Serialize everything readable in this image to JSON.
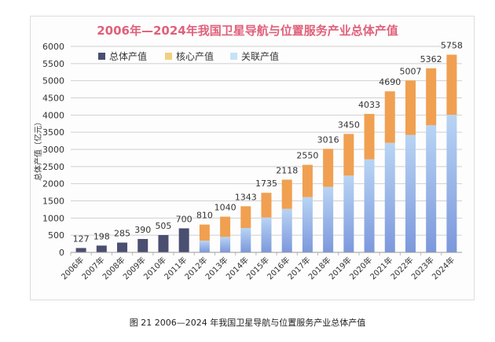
{
  "chart_data": {
    "type": "bar",
    "stacked": true,
    "title": "2006年—2024年我国卫星导航与位置服务产业总体产值",
    "ylabel": "总体产值（亿元）",
    "xlabel": "",
    "ylim": [
      0,
      6000
    ],
    "yticks": [
      0,
      500,
      1000,
      1500,
      2000,
      2500,
      3000,
      3500,
      4000,
      4500,
      5000,
      5500,
      6000
    ],
    "grid": true,
    "legend_position": "top-left",
    "categories": [
      "2006年",
      "2007年",
      "2008年",
      "2009年",
      "2010年",
      "2011年",
      "2012年",
      "2013年",
      "2014年",
      "2015年",
      "2016年",
      "2017年",
      "2018年",
      "2019年",
      "2020年",
      "2021年",
      "2022年",
      "2023年",
      "2024年"
    ],
    "series": [
      {
        "name": "总体产值",
        "color": "#4a4e70",
        "values": [
          127,
          198,
          285,
          390,
          505,
          700,
          null,
          null,
          null,
          null,
          null,
          null,
          null,
          null,
          null,
          null,
          null,
          null,
          null
        ]
      },
      {
        "name": "核心产值",
        "color": "#f0a050",
        "values": [
          null,
          null,
          null,
          null,
          null,
          null,
          470,
          590,
          633,
          720,
          851,
          940,
          1108,
          1213,
          1323,
          1500,
          1587,
          1660,
          1750
        ]
      },
      {
        "name": "关联产值",
        "color": "#9ab8ec",
        "values": [
          null,
          null,
          null,
          null,
          null,
          null,
          340,
          450,
          710,
          1015,
          1267,
          1610,
          1908,
          2237,
          2710,
          3190,
          3420,
          3702,
          4008
        ]
      }
    ],
    "totals": [
      127,
      198,
      285,
      390,
      505,
      700,
      810,
      1040,
      1343,
      1735,
      2118,
      2550,
      3016,
      3450,
      4033,
      4690,
      5007,
      5362,
      5758
    ]
  },
  "caption": "图 21  2006—2024 年我国卫星导航与位置服务产业总体产值"
}
